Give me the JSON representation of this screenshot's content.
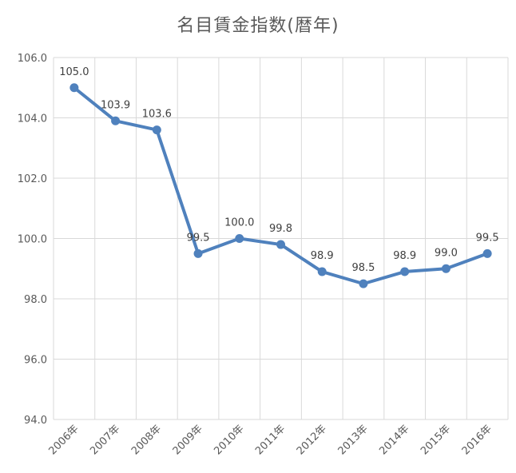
{
  "chart_data": {
    "type": "line",
    "title": "名目賃金指数(暦年)",
    "xlabel": "",
    "ylabel": "",
    "categories": [
      "2006年",
      "2007年",
      "2008年",
      "2009年",
      "2010年",
      "2011年",
      "2012年",
      "2013年",
      "2014年",
      "2015年",
      "2016年"
    ],
    "series": [
      {
        "values": [
          105.0,
          103.9,
          103.6,
          99.5,
          100.0,
          99.8,
          98.9,
          98.5,
          98.9,
          99.0,
          99.5
        ]
      }
    ],
    "data_labels": [
      "105.0",
      "103.9",
      "103.6",
      "99.5",
      "100.0",
      "99.8",
      "98.9",
      "98.5",
      "98.9",
      "99.0",
      "99.5"
    ],
    "ylim": [
      94.0,
      106.0
    ],
    "yticks": [
      "94.0",
      "96.0",
      "98.0",
      "100.0",
      "102.0",
      "104.0",
      "106.0"
    ],
    "grid": true,
    "legend": "none",
    "line_color": "#4f81bd",
    "grid_color": "#d9d9d9"
  }
}
